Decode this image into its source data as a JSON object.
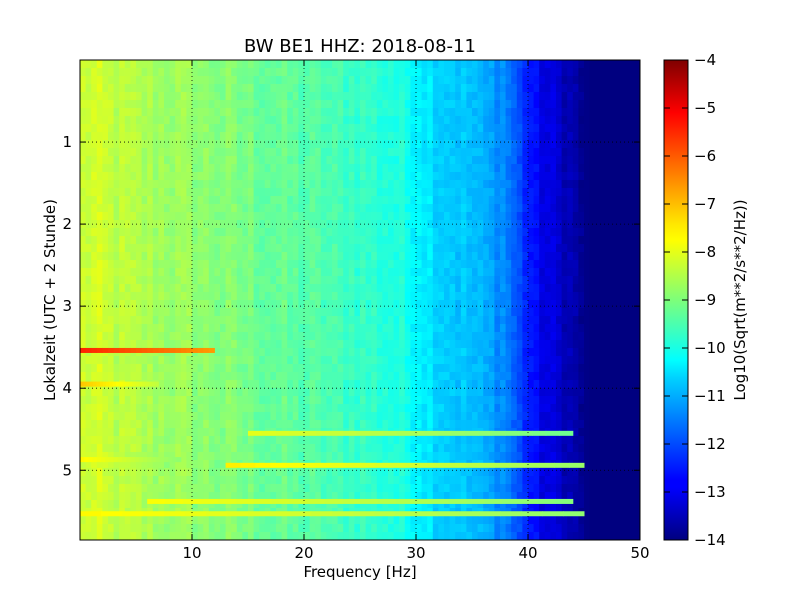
{
  "chart_data": {
    "type": "heatmap",
    "title": "BW BE1 HHZ: 2018-08-11",
    "xlabel": "Frequency [Hz]",
    "ylabel": "Lokalzeit (UTC + 2 Stunde)",
    "xlim": [
      0,
      50
    ],
    "ylim": [
      5.85,
      0
    ],
    "x_ticks": [
      "10",
      "20",
      "30",
      "40",
      "50"
    ],
    "y_ticks": [
      "1",
      "2",
      "3",
      "4",
      "5"
    ],
    "grid": true,
    "colormap": "jet",
    "colorbar": {
      "label": "Log10(Sqrt(m**2/s**2/Hz))",
      "range": [
        -14,
        -4
      ],
      "ticks": [
        "−4",
        "−5",
        "−6",
        "−7",
        "−8",
        "−9",
        "−10",
        "−11",
        "−12",
        "−13",
        "−14"
      ]
    },
    "background_spectrum": {
      "frequency_hz": [
        0,
        1,
        3,
        6,
        10,
        15,
        20,
        25,
        28,
        30,
        32,
        35,
        38,
        39.5,
        41,
        43,
        44.5,
        45.5,
        50
      ],
      "log10_amplitude": [
        -8.3,
        -8.2,
        -8.4,
        -8.6,
        -8.8,
        -9.1,
        -9.4,
        -9.7,
        -9.9,
        -10.2,
        -10.6,
        -10.9,
        -11.4,
        -12.2,
        -12.9,
        -13.3,
        -13.7,
        -14,
        -14
      ]
    },
    "horizontal_bands": [
      {
        "time_h": 3.54,
        "freq_range_hz": [
          0,
          12
        ],
        "log10_amplitude": -5.6
      },
      {
        "time_h": 3.95,
        "freq_range_hz": [
          0,
          7
        ],
        "log10_amplitude": -7.2
      },
      {
        "time_h": 4.55,
        "freq_range_hz": [
          15,
          44
        ],
        "log10_amplitude": -8.0
      },
      {
        "time_h": 4.87,
        "freq_range_hz": [
          0,
          9
        ],
        "log10_amplitude": -7.7
      },
      {
        "time_h": 4.94,
        "freq_range_hz": [
          13,
          45
        ],
        "log10_amplitude": -7.6
      },
      {
        "time_h": 5.38,
        "freq_range_hz": [
          6,
          44
        ],
        "log10_amplitude": -7.8
      },
      {
        "time_h": 5.53,
        "freq_range_hz": [
          0,
          45
        ],
        "log10_amplitude": -7.7
      }
    ]
  }
}
